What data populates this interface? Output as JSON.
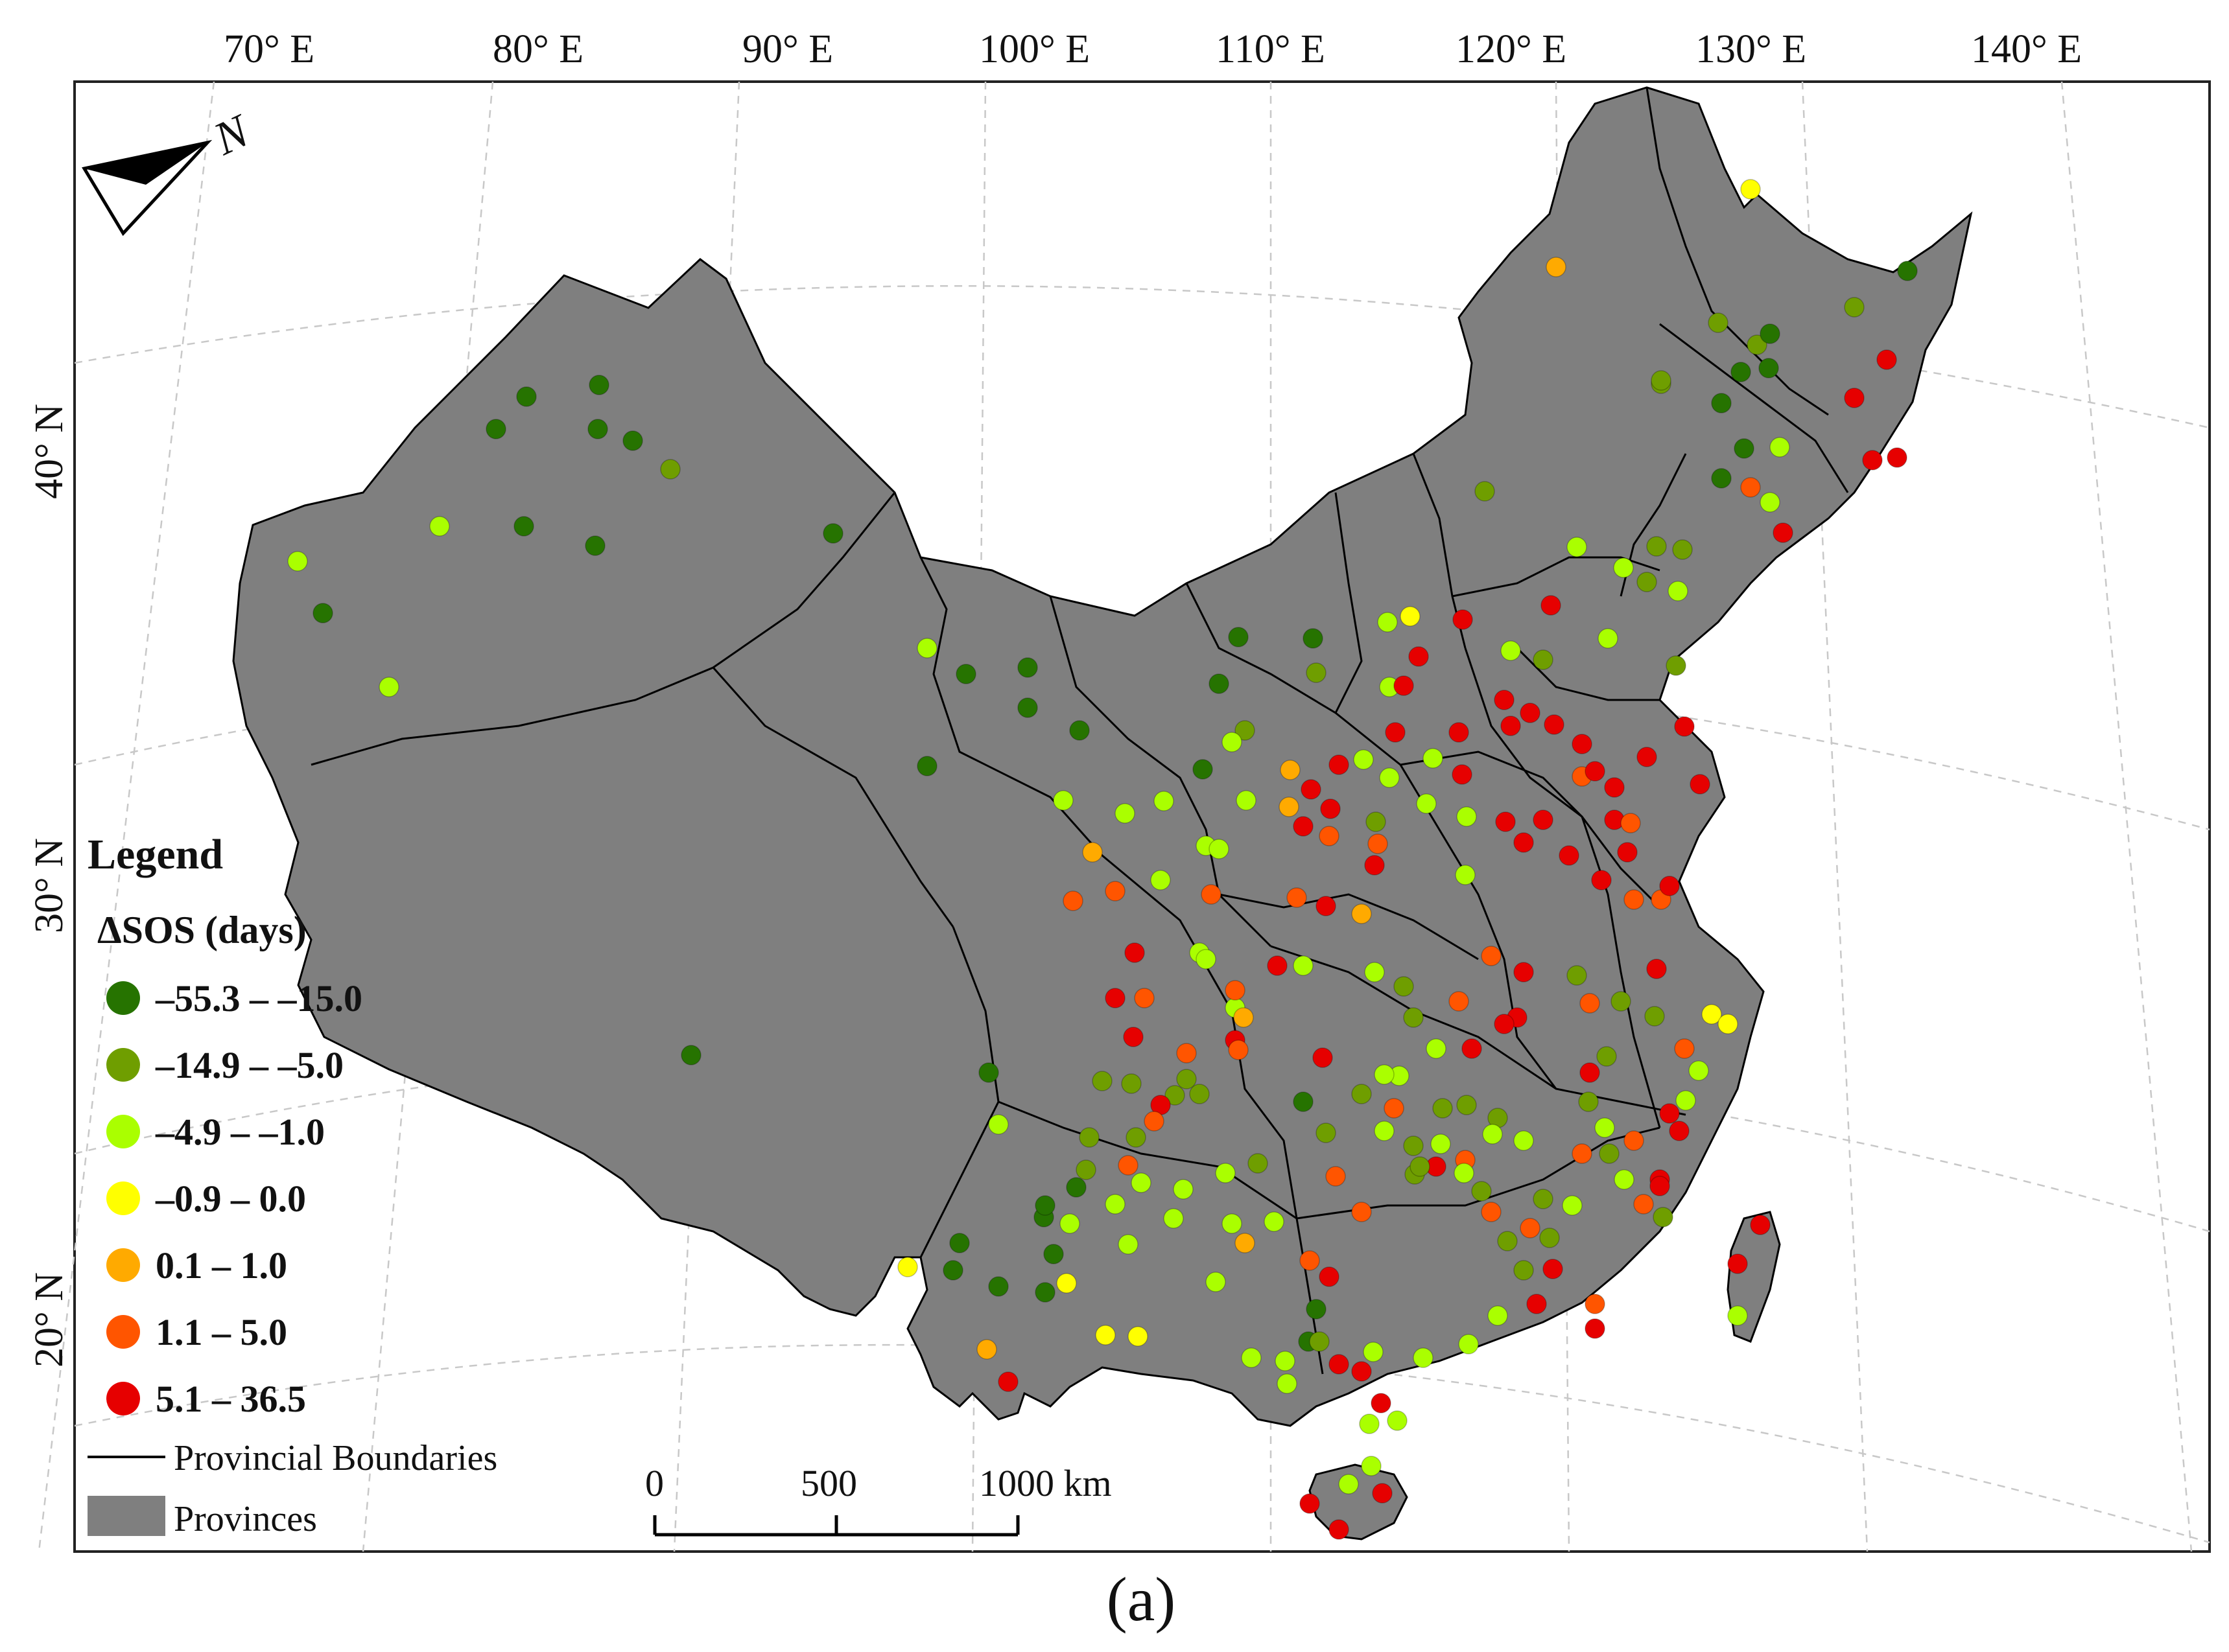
{
  "figure_label": "(a)",
  "map": {
    "lon_labels": [
      "70° E",
      "80° E",
      "90° E",
      "100° E",
      "110° E",
      "120° E",
      "130° E",
      "140° E"
    ],
    "lat_labels": [
      "40° N",
      "30° N",
      "20° N"
    ],
    "north_arrow_label": "N",
    "land_color": "#7f7f7f",
    "boundary_color": "#000000"
  },
  "legend": {
    "title": "Legend",
    "subtitle": "ΔSOS (days)",
    "classes": [
      {
        "label": "–55.3 – –15.0",
        "color": "#267300"
      },
      {
        "label": "–14.9 – –5.0",
        "color": "#6f9e00"
      },
      {
        "label": "–4.9 – –1.0",
        "color": "#aaff00"
      },
      {
        "label": "–0.9 – 0.0",
        "color": "#ffff00"
      },
      {
        "label": "0.1 – 1.0",
        "color": "#ffaa00"
      },
      {
        "label": "1.1 – 5.0",
        "color": "#ff5500"
      },
      {
        "label": "5.1 – 36.5",
        "color": "#e60000"
      }
    ],
    "boundary_label": "Provincial Boundaries",
    "province_label": "Provinces"
  },
  "scale_bar": {
    "labels": [
      "0",
      "500",
      "1000 km"
    ]
  }
}
